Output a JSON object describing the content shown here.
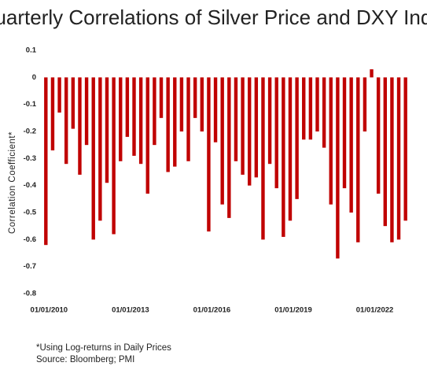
{
  "chart_data": {
    "type": "bar",
    "title": "Quarterly Correlations of Silver Price and DXY Index",
    "y_label": "Correlation Coefficient*",
    "categories": [
      "01/01/2010",
      null,
      null,
      null,
      null,
      null,
      null,
      null,
      null,
      null,
      null,
      null,
      "01/01/2013",
      null,
      null,
      null,
      null,
      null,
      null,
      null,
      null,
      null,
      null,
      null,
      "01/01/2016",
      null,
      null,
      null,
      null,
      null,
      null,
      null,
      null,
      null,
      null,
      null,
      "01/01/2019",
      null,
      null,
      null,
      null,
      null,
      null,
      null,
      null,
      null,
      null,
      null,
      "01/01/2022",
      null,
      null,
      null,
      null,
      null
    ],
    "values": [
      -0.62,
      -0.27,
      -0.13,
      -0.32,
      -0.19,
      -0.36,
      -0.25,
      -0.6,
      -0.53,
      -0.39,
      -0.58,
      -0.31,
      -0.22,
      -0.29,
      -0.32,
      -0.43,
      -0.25,
      -0.15,
      -0.35,
      -0.33,
      -0.2,
      -0.31,
      -0.15,
      -0.2,
      -0.57,
      -0.24,
      -0.47,
      -0.52,
      -0.31,
      -0.36,
      -0.4,
      -0.37,
      -0.6,
      -0.32,
      -0.41,
      -0.59,
      -0.53,
      -0.45,
      -0.23,
      -0.23,
      -0.2,
      -0.26,
      -0.47,
      -0.67,
      -0.41,
      -0.5,
      -0.61,
      -0.2,
      0.03,
      -0.43,
      -0.55,
      -0.61,
      -0.6,
      -0.53
    ],
    "color": "#c00000",
    "ylim": [
      -0.8,
      0.1
    ],
    "yticks": [
      0.1,
      0,
      -0.1,
      -0.2,
      -0.3,
      -0.4,
      -0.5,
      -0.6,
      -0.7,
      -0.8
    ],
    "grid": false
  },
  "notes": [
    "*Using Log-returns in Daily Prices",
    "Source: Bloomberg; PMI"
  ]
}
